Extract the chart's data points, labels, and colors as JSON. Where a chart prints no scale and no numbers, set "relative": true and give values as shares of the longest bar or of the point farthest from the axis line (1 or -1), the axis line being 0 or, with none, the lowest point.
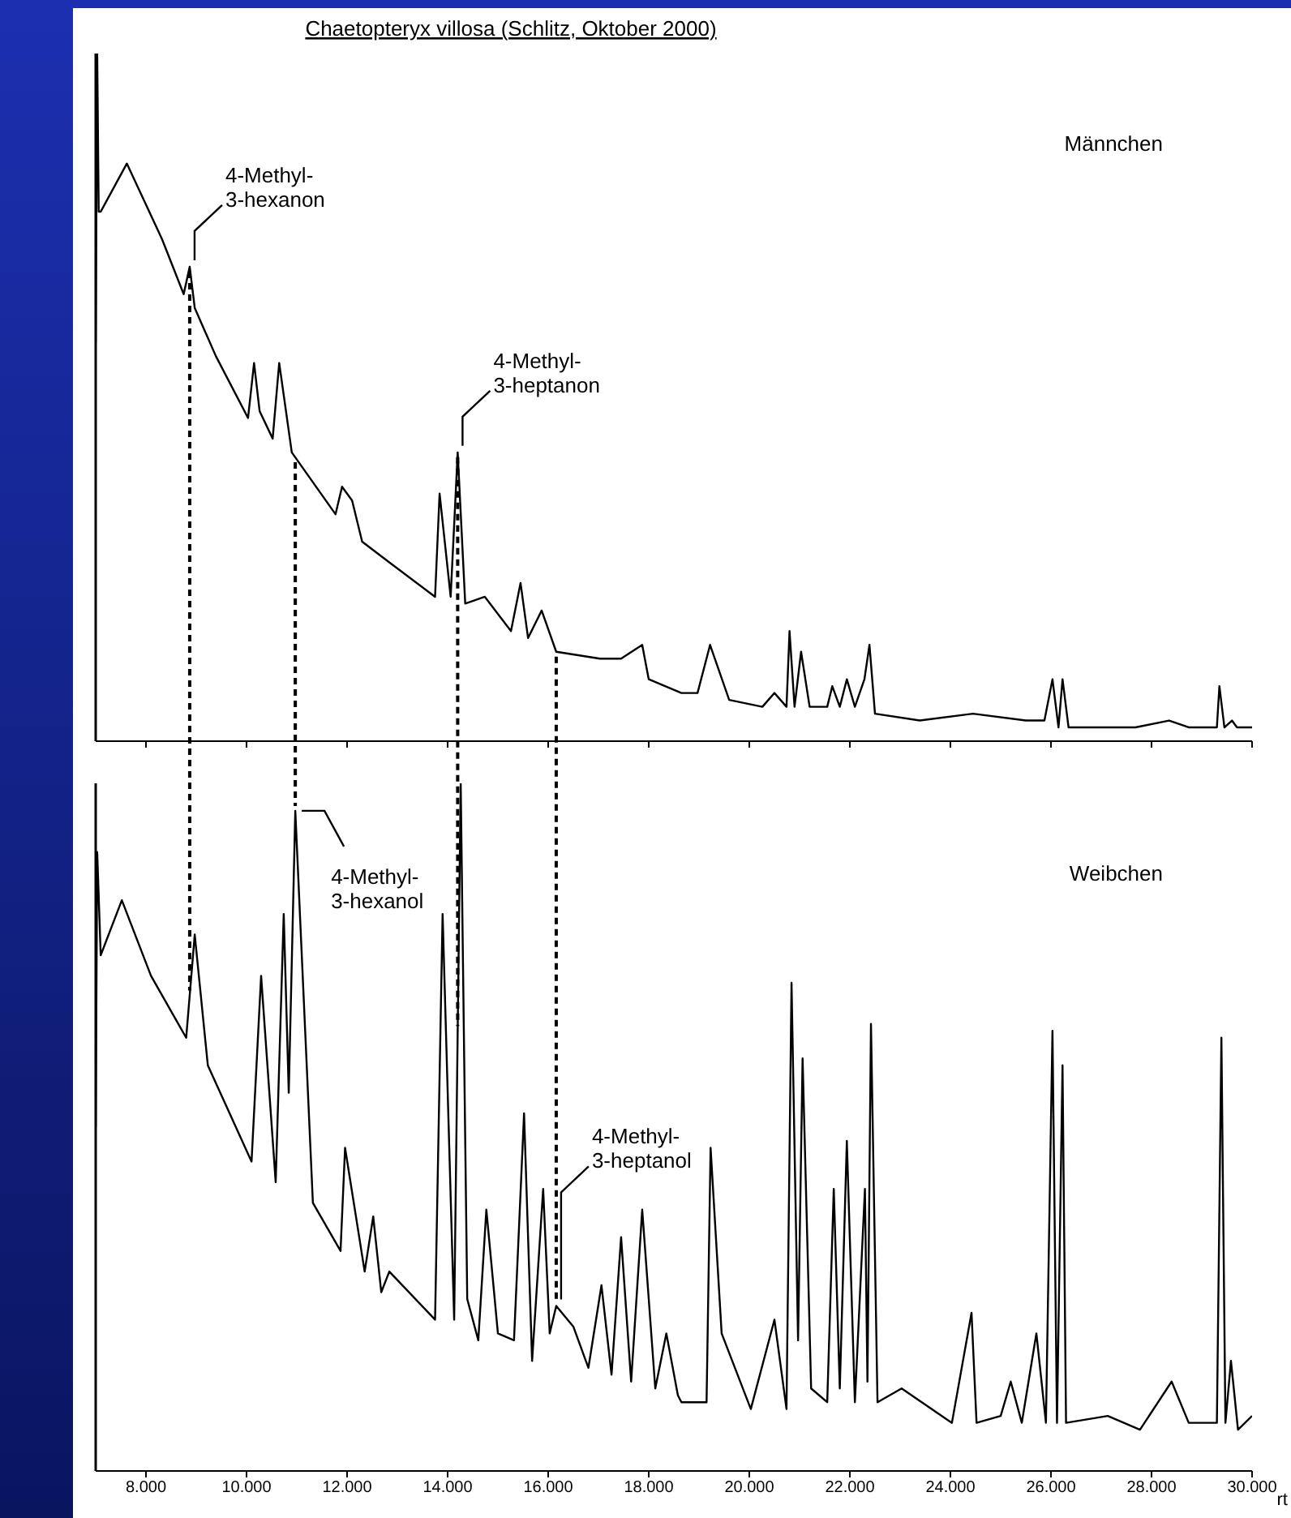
{
  "chart_data": [
    {
      "type": "line",
      "title": "Chaetopteryx villosa     (Schlitz, Oktober 2000)",
      "relative": true,
      "xlim": [
        7,
        30
      ],
      "tick_labels": false,
      "xticks": [
        {
          "value": 8,
          "label": null
        },
        {
          "value": 10,
          "label": null
        },
        {
          "value": 12,
          "label": null
        },
        {
          "value": 14,
          "label": null
        },
        {
          "value": 16,
          "label": null
        },
        {
          "value": 18,
          "label": null
        },
        {
          "value": 20,
          "label": null
        },
        {
          "value": 22,
          "label": null
        },
        {
          "value": 24,
          "label": null
        },
        {
          "value": 26,
          "label": null
        },
        {
          "value": 28,
          "label": null
        },
        {
          "value": 30,
          "label": null
        }
      ],
      "annotations": [
        "Männchen",
        {
          "text": "4-Methyl-\n3-hexanon",
          "x": 8.87,
          "y": 0.69
        },
        {
          "text": "4-Methyl-\n3-heptanon",
          "x": 14.2,
          "y": 0.42
        }
      ],
      "series": [
        {
          "color": "#000000",
          "x": [
            7.0,
            7.03,
            7.06,
            7.1,
            7.62,
            8.32,
            8.75,
            8.87,
            8.97,
            9.39,
            10.03,
            10.15,
            10.26,
            10.52,
            10.65,
            10.9,
            11.77,
            11.9,
            12.1,
            12.3,
            12.84,
            13.75,
            13.84,
            14.06,
            14.2,
            14.35,
            14.74,
            15.26,
            15.45,
            15.6,
            15.87,
            16.16,
            17.03,
            17.45,
            17.87,
            18.0,
            18.65,
            18.97,
            19.22,
            19.6,
            20.26,
            20.5,
            20.74,
            20.8,
            20.9,
            21.03,
            21.2,
            21.55,
            21.65,
            21.8,
            21.94,
            22.1,
            22.29,
            22.39,
            22.5,
            23.39,
            24.45,
            25.5,
            25.87,
            26.03,
            26.15,
            26.23,
            26.35,
            27.68,
            28.35,
            28.75,
            29.3,
            29.35,
            29.45,
            29.6,
            29.7,
            30.0
          ],
          "values": [
            0.58,
            1,
            0.77,
            0.77,
            0.84,
            0.73,
            0.65,
            0.69,
            0.63,
            0.56,
            0.47,
            0.55,
            0.48,
            0.44,
            0.55,
            0.42,
            0.33,
            0.37,
            0.35,
            0.29,
            0.26,
            0.21,
            0.36,
            0.21,
            0.42,
            0.2,
            0.21,
            0.16,
            0.23,
            0.15,
            0.19,
            0.13,
            0.12,
            0.12,
            0.14,
            0.09,
            0.07,
            0.07,
            0.14,
            0.06,
            0.05,
            0.07,
            0.05,
            0.16,
            0.05,
            0.13,
            0.05,
            0.05,
            0.08,
            0.05,
            0.09,
            0.05,
            0.09,
            0.14,
            0.04,
            0.03,
            0.04,
            0.03,
            0.03,
            0.09,
            0.02,
            0.09,
            0.02,
            0.02,
            0.03,
            0.02,
            0.02,
            0.08,
            0.02,
            0.03,
            0.02,
            0.02
          ]
        }
      ]
    },
    {
      "type": "line",
      "xlabel": "rt",
      "relative": true,
      "xlim": [
        7,
        30
      ],
      "tick_labels": "x",
      "xticks": [
        {
          "value": 8,
          "label": "8.000"
        },
        {
          "value": 10,
          "label": "10.000"
        },
        {
          "value": 12,
          "label": "12.000"
        },
        {
          "value": 14,
          "label": "14.000"
        },
        {
          "value": 16,
          "label": "16.000"
        },
        {
          "value": 18,
          "label": "18.000"
        },
        {
          "value": 20,
          "label": "20.000"
        },
        {
          "value": 22,
          "label": "22.000"
        },
        {
          "value": 24,
          "label": "24.000"
        },
        {
          "value": 26,
          "label": "26.000"
        },
        {
          "value": 28,
          "label": "28.000"
        },
        {
          "value": 30,
          "label": "30.000"
        }
      ],
      "annotations": [
        "Weibchen",
        {
          "text": "4-Methyl-\n3-hexanol",
          "x": 10.97,
          "y": 0.96
        },
        {
          "text": "4-Methyl-\n3-heptanol",
          "x": 16.16,
          "y": 0.24
        }
      ],
      "series": [
        {
          "color": "#000000",
          "x": [
            7.0,
            7.03,
            7.1,
            7.52,
            8.1,
            8.8,
            8.97,
            9.23,
            10.1,
            10.29,
            10.58,
            10.74,
            10.84,
            10.97,
            11.32,
            11.87,
            11.96,
            12.35,
            12.52,
            12.68,
            12.84,
            13.75,
            13.9,
            14.13,
            14.26,
            14.39,
            14.61,
            14.77,
            15.0,
            15.32,
            15.52,
            15.68,
            15.9,
            16.03,
            16.16,
            16.5,
            16.8,
            17.06,
            17.26,
            17.45,
            17.65,
            17.87,
            18.13,
            18.35,
            18.58,
            18.65,
            19.15,
            19.23,
            19.45,
            20.03,
            20.5,
            20.74,
            20.84,
            20.97,
            21.06,
            21.23,
            21.55,
            21.68,
            21.8,
            21.94,
            22.1,
            22.3,
            22.35,
            22.42,
            22.55,
            23.03,
            24.03,
            24.42,
            24.52,
            25.0,
            25.2,
            25.42,
            25.71,
            25.9,
            26.03,
            26.12,
            26.23,
            26.3,
            27.13,
            27.77,
            28.4,
            28.74,
            29.3,
            29.39,
            29.47,
            29.58,
            29.72,
            30.0
          ],
          "values": [
            0.5,
            0.9,
            0.75,
            0.83,
            0.72,
            0.63,
            0.78,
            0.59,
            0.45,
            0.72,
            0.42,
            0.81,
            0.55,
            0.96,
            0.39,
            0.32,
            0.47,
            0.29,
            0.37,
            0.26,
            0.29,
            0.22,
            0.81,
            0.22,
            1,
            0.25,
            0.19,
            0.38,
            0.2,
            0.19,
            0.52,
            0.16,
            0.41,
            0.2,
            0.24,
            0.21,
            0.15,
            0.27,
            0.14,
            0.34,
            0.13,
            0.38,
            0.12,
            0.2,
            0.11,
            0.1,
            0.1,
            0.47,
            0.2,
            0.09,
            0.22,
            0.09,
            0.71,
            0.19,
            0.6,
            0.12,
            0.1,
            0.41,
            0.12,
            0.48,
            0.1,
            0.41,
            0.13,
            0.65,
            0.1,
            0.12,
            0.07,
            0.23,
            0.07,
            0.08,
            0.13,
            0.07,
            0.2,
            0.07,
            0.64,
            0.07,
            0.59,
            0.07,
            0.08,
            0.06,
            0.13,
            0.07,
            0.07,
            0.63,
            0.07,
            0.16,
            0.06,
            0.08
          ]
        }
      ]
    }
  ]
}
